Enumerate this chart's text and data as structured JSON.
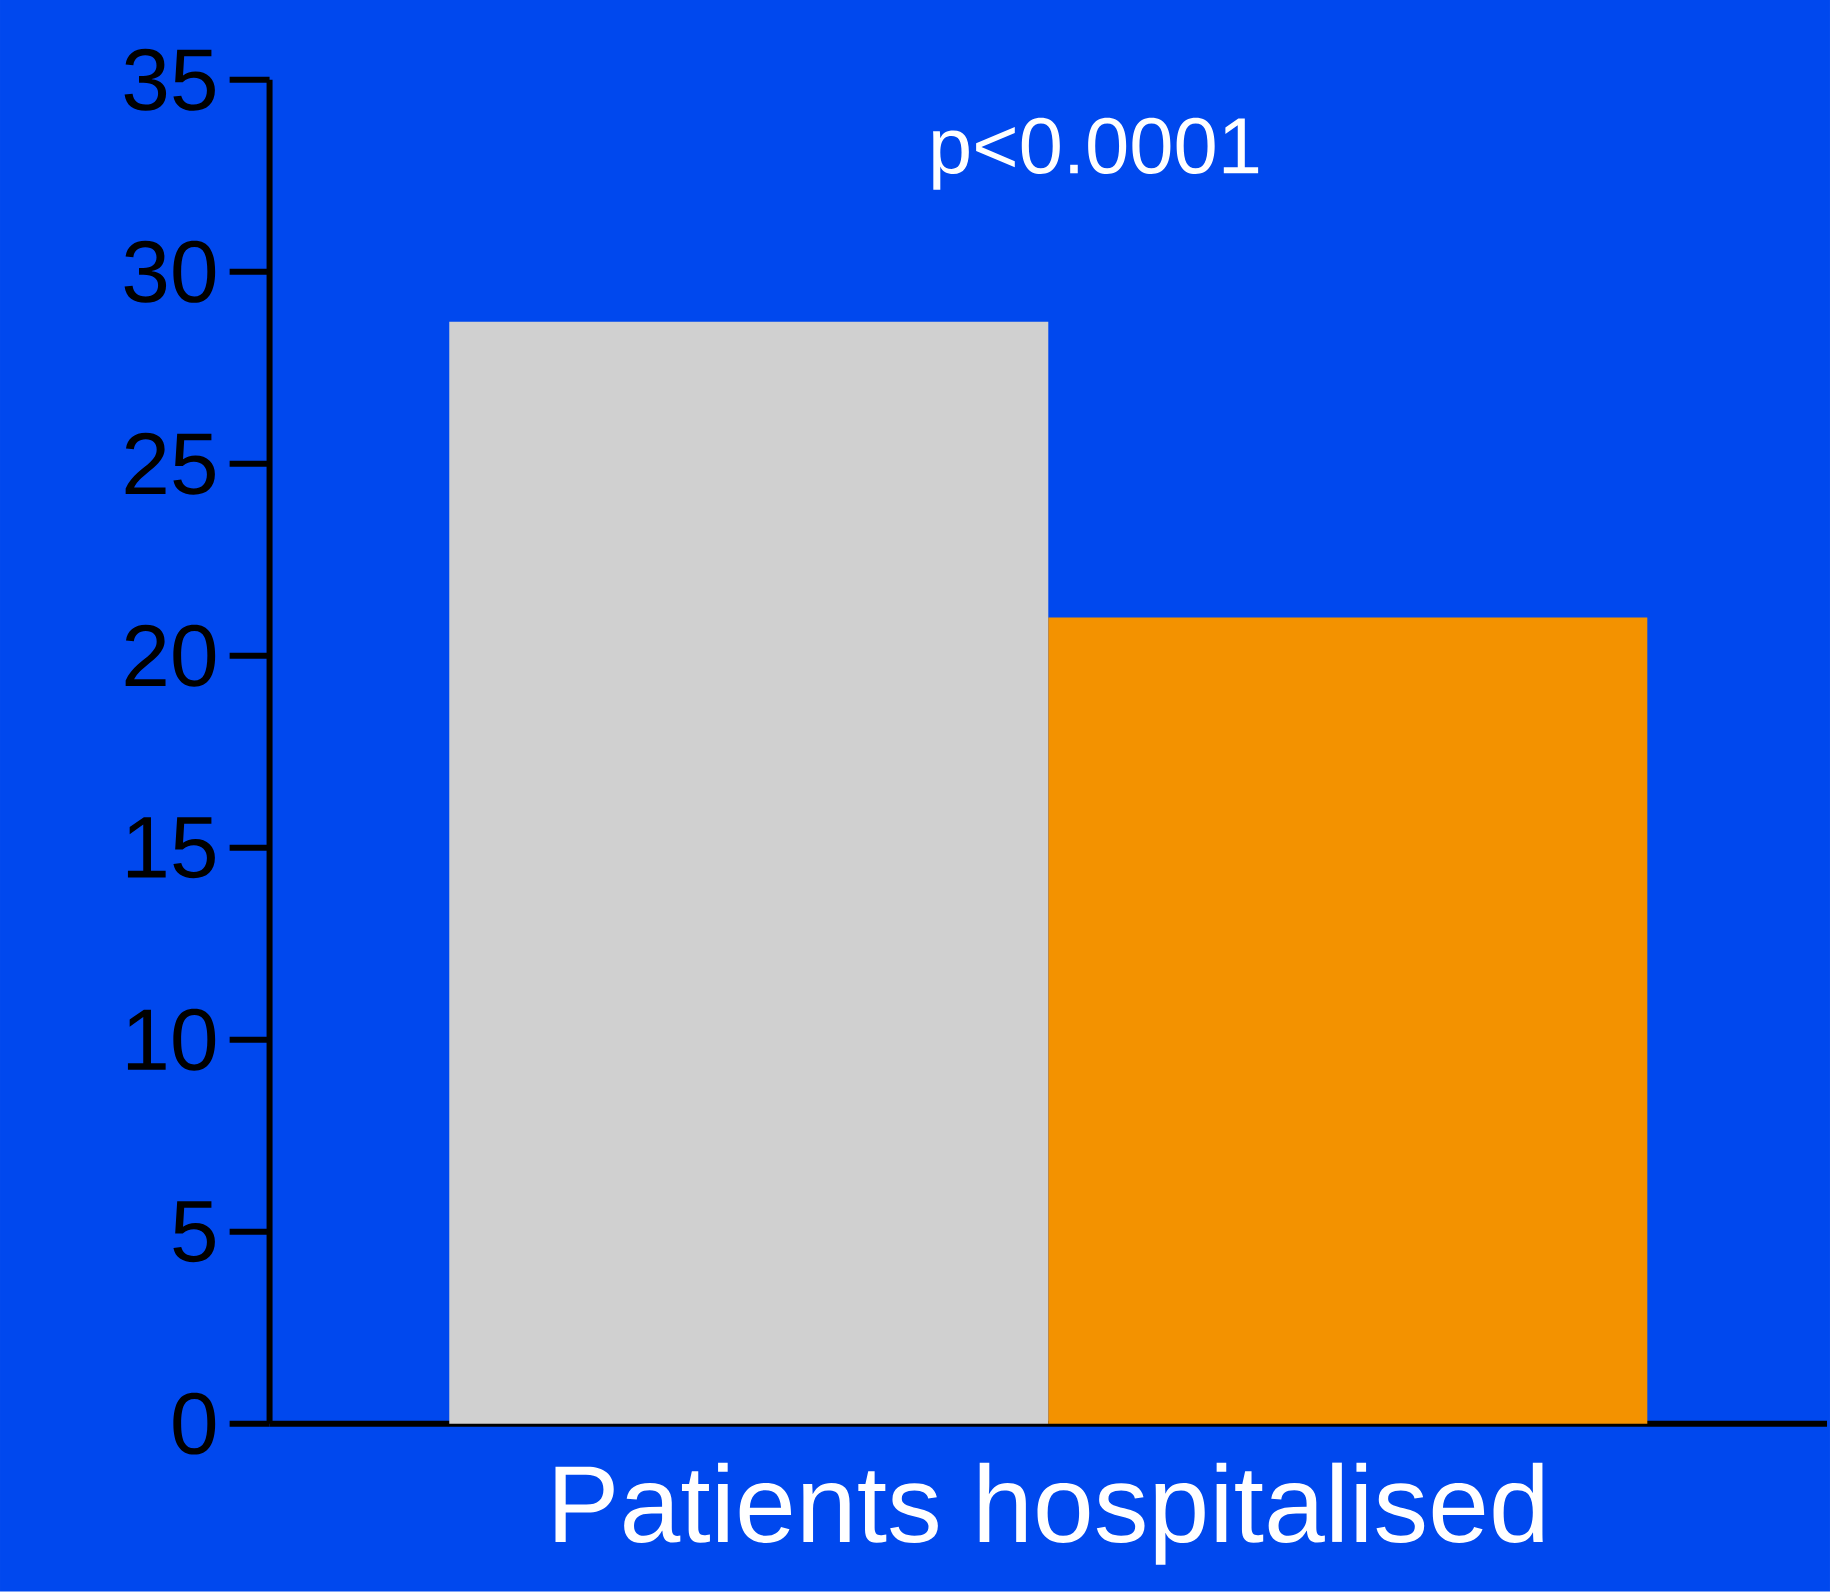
{
  "chart_data": {
    "type": "bar",
    "categories": [
      "Patients hospitalised"
    ],
    "series": [
      {
        "color": "#d0d0d0",
        "values": [
          28.7
        ]
      },
      {
        "color": "#f39200",
        "values": [
          21.0
        ]
      }
    ],
    "ylim": [
      0,
      35
    ],
    "yticks": [
      0,
      5,
      10,
      15,
      20,
      25,
      30,
      35
    ],
    "grid": false,
    "annotations": [
      "p<0.0001"
    ]
  }
}
